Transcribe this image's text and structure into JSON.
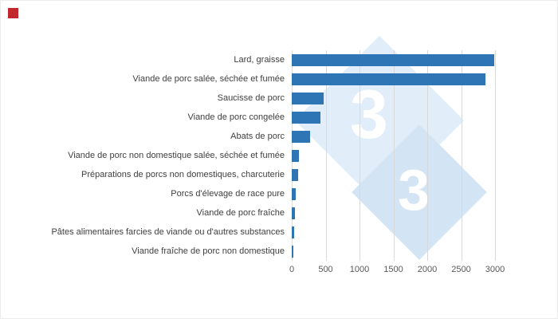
{
  "logo": {
    "color": "#c1272d"
  },
  "watermark": {
    "glyph": "3",
    "diamond_color_1": "#e1edf8",
    "diamond_color_2": "#d3e5f4",
    "glyph_color": "#ffffff"
  },
  "chart_data": {
    "type": "bar",
    "orientation": "horizontal",
    "title": "",
    "xlabel": "",
    "ylabel": "",
    "categories": [
      "Lard, graisse",
      "Viande de porc salée, séchée et fumée",
      "Saucisse de porc",
      "Viande de porc congelée",
      "Abats de porc",
      "Viande de porc non domestique salée, séchée et fumée",
      "Préparations de porcs non domestiques, charcuterie",
      "Porcs d'élevage de race pure",
      "Viande de porc fraîche",
      "Pâtes alimentaires farcies de viande ou d'autres substances",
      "Viande fraîche de porc non domestique"
    ],
    "values": [
      2990,
      2860,
      470,
      420,
      270,
      110,
      90,
      55,
      50,
      40,
      15
    ],
    "xticks": [
      0,
      500,
      1000,
      1500,
      2000,
      2500,
      3000
    ],
    "xlim": [
      0,
      3000
    ],
    "bar_color": "#2e75b6",
    "grid": true,
    "gridline_color": "#d9d9d9",
    "legend_position": "none"
  }
}
